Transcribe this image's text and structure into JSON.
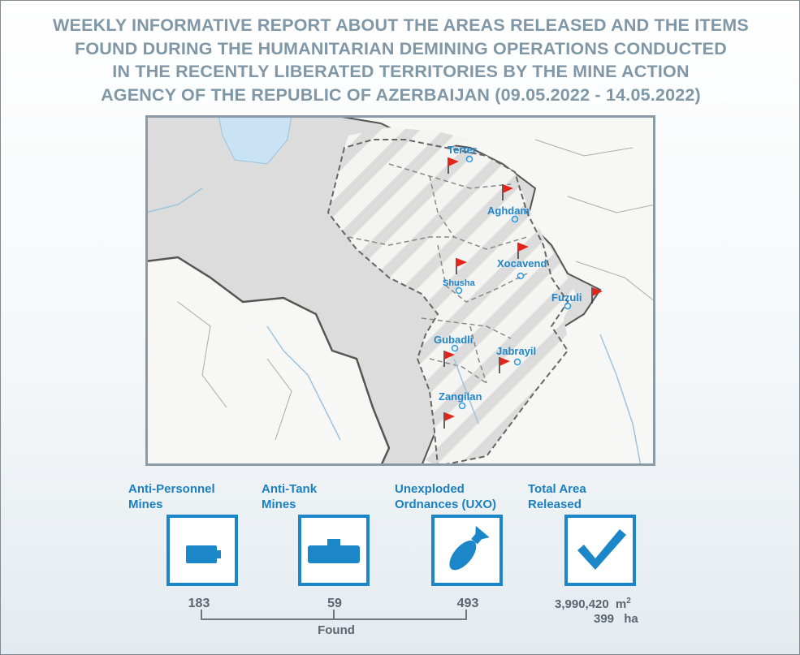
{
  "title": {
    "line1": "WEEKLY INFORMATIVE REPORT ABOUT THE AREAS RELEASED AND THE ITEMS",
    "line2": "FOUND DURING THE HUMANITARIAN DEMINING OPERATIONS CONDUCTED",
    "line3": "IN THE RECENTLY LIBERATED TERRITORIES BY THE MINE ACTION",
    "line4": "AGENCY OF THE REPUBLIC OF AZERBAIJAN (09.05.2022 - 14.05.2022)"
  },
  "map": {
    "cities": {
      "terter": "Terter",
      "aghdam": "Aghdam",
      "xocavend": "Xocavend",
      "shusha": "Shusha",
      "fuzuli": "Fuzuli",
      "gubadli": "Gubadli",
      "jabrayil": "Jabrayil",
      "zangilan": "Zangilan"
    },
    "colors": {
      "flag": "#e1251b",
      "marker": "#2a9be0",
      "city_text": "#1f86c9",
      "land": "#f7f7f5",
      "outside": "#d9d9d9",
      "water": "#c9e2f4"
    }
  },
  "stats": {
    "ap_label_1": "Anti-Personnel",
    "ap_label_2": "Mines",
    "ap_count": "183",
    "at_label_1": "Anti-Tank",
    "at_label_2": "Mines",
    "at_count": "59",
    "uxo_label_1": "Unexploded",
    "uxo_label_2": "Ordnances (UXO)",
    "uxo_count": "493",
    "area_label_1": "Total Area",
    "area_label_2": "Released",
    "area_m2": "3,990,420",
    "area_m2_unit": "m",
    "area_m2_sup": "2",
    "area_ha": "399",
    "area_ha_unit": "ha",
    "found_label": "Found"
  },
  "icons": [
    "anti-personnel-mine-icon",
    "anti-tank-mine-icon",
    "bomb-icon",
    "checkmark-icon",
    "flag-icon",
    "location-pin-icon"
  ],
  "accent_color": "#1b86c8"
}
